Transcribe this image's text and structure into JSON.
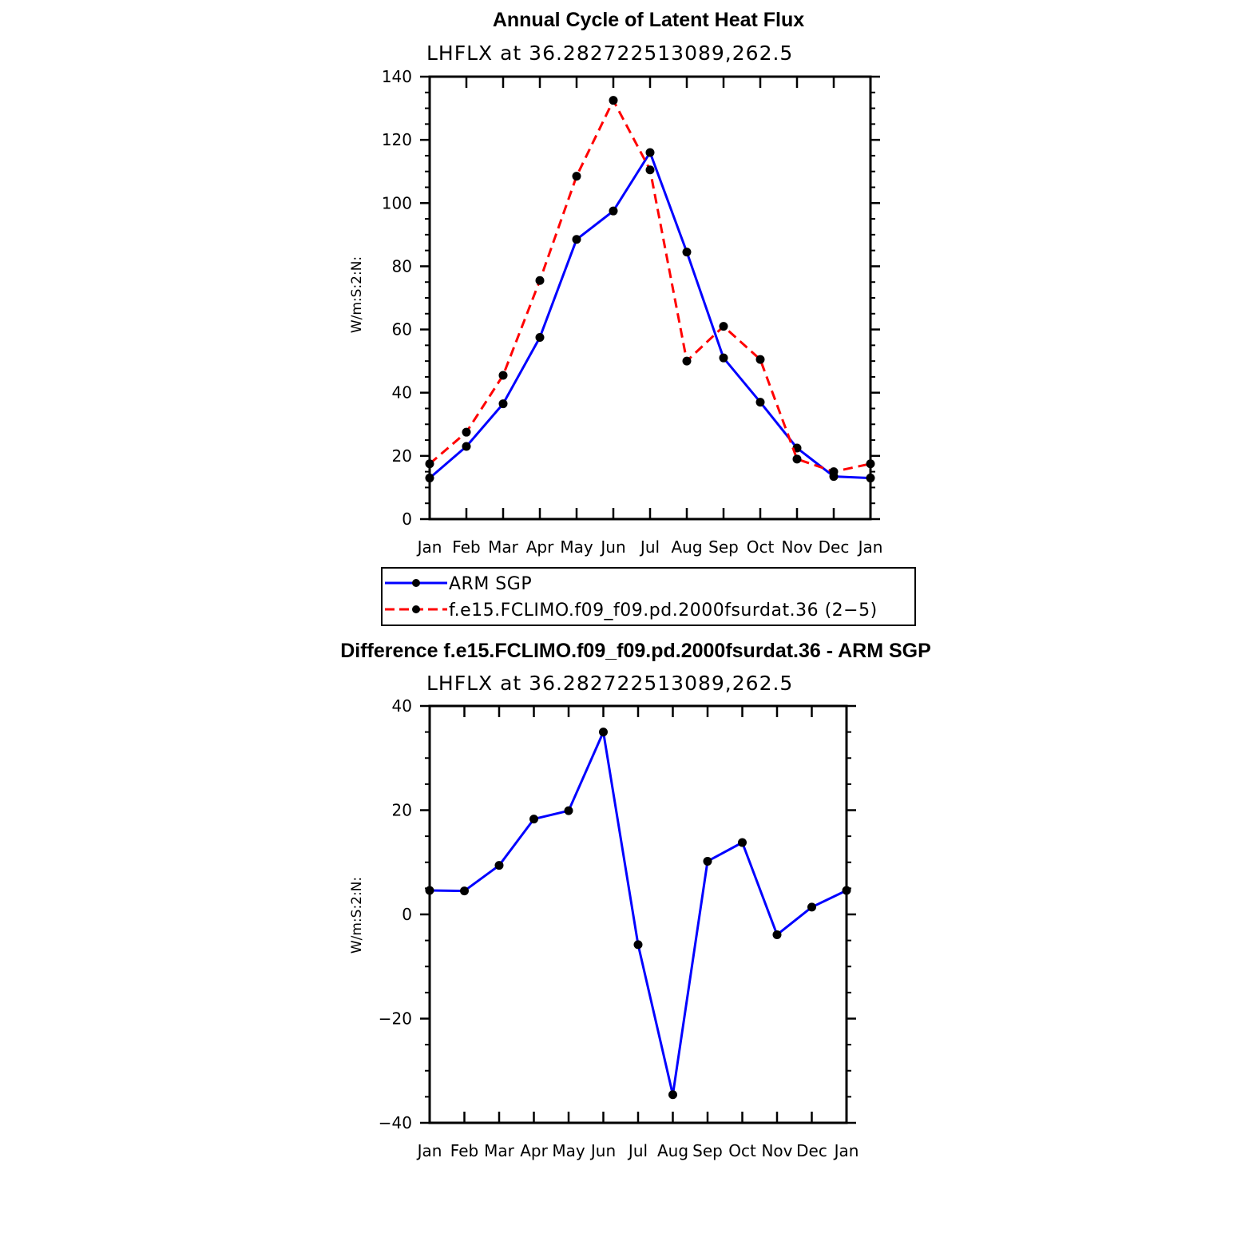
{
  "chart_data": [
    {
      "type": "line",
      "title": "Annual Cycle of Latent Heat Flux",
      "subtitle": "LHFLX  at  36.282722513089,262.5",
      "ylabel": "W/m:S:2:N:",
      "xlabel": "",
      "categories": [
        "Jan",
        "Feb",
        "Mar",
        "Apr",
        "May",
        "Jun",
        "Jul",
        "Aug",
        "Sep",
        "Oct",
        "Nov",
        "Dec",
        "Jan"
      ],
      "ylim": [
        0,
        140
      ],
      "yticks": [
        0,
        20,
        40,
        60,
        80,
        100,
        120,
        140
      ],
      "yticklabels": [
        "0",
        "20",
        "40",
        "60",
        "80",
        "100",
        "120",
        "140"
      ],
      "series": [
        {
          "name": "ARM  SGP",
          "color": "#0000ff",
          "dash": "solid",
          "values": [
            13.0,
            23.0,
            36.5,
            57.5,
            88.5,
            97.5,
            116.0,
            84.5,
            51.0,
            37.0,
            22.5,
            13.5,
            13.0
          ]
        },
        {
          "name": "f.e15.FCLIMO.f09_f09.pd.2000fsurdat.36  (2−5)",
          "color": "#ff0000",
          "dash": "dashed",
          "values": [
            17.5,
            27.5,
            45.5,
            75.5,
            108.5,
            132.5,
            110.5,
            50.0,
            61.0,
            50.5,
            19.0,
            15.0,
            17.5
          ]
        }
      ],
      "legend": "below"
    },
    {
      "type": "line",
      "title": "Difference f.e15.FCLIMO.f09_f09.pd.2000fsurdat.36 - ARM SGP",
      "subtitle": "LHFLX  at  36.282722513089,262.5",
      "ylabel": "W/m:S:2:N:",
      "xlabel": "",
      "categories": [
        "Jan",
        "Feb",
        "Mar",
        "Apr",
        "May",
        "Jun",
        "Jul",
        "Aug",
        "Sep",
        "Oct",
        "Nov",
        "Dec",
        "Jan"
      ],
      "ylim": [
        -40,
        40
      ],
      "yticks": [
        -40,
        -20,
        0,
        20,
        40
      ],
      "yticklabels": [
        "−40",
        "−20",
        "0",
        "20",
        "40"
      ],
      "series": [
        {
          "name": "Difference",
          "color": "#0000ff",
          "dash": "solid",
          "values": [
            4.6,
            4.5,
            9.4,
            18.3,
            19.9,
            35.0,
            -5.8,
            -34.6,
            10.2,
            13.8,
            -3.9,
            1.4,
            4.6
          ]
        }
      ]
    }
  ]
}
